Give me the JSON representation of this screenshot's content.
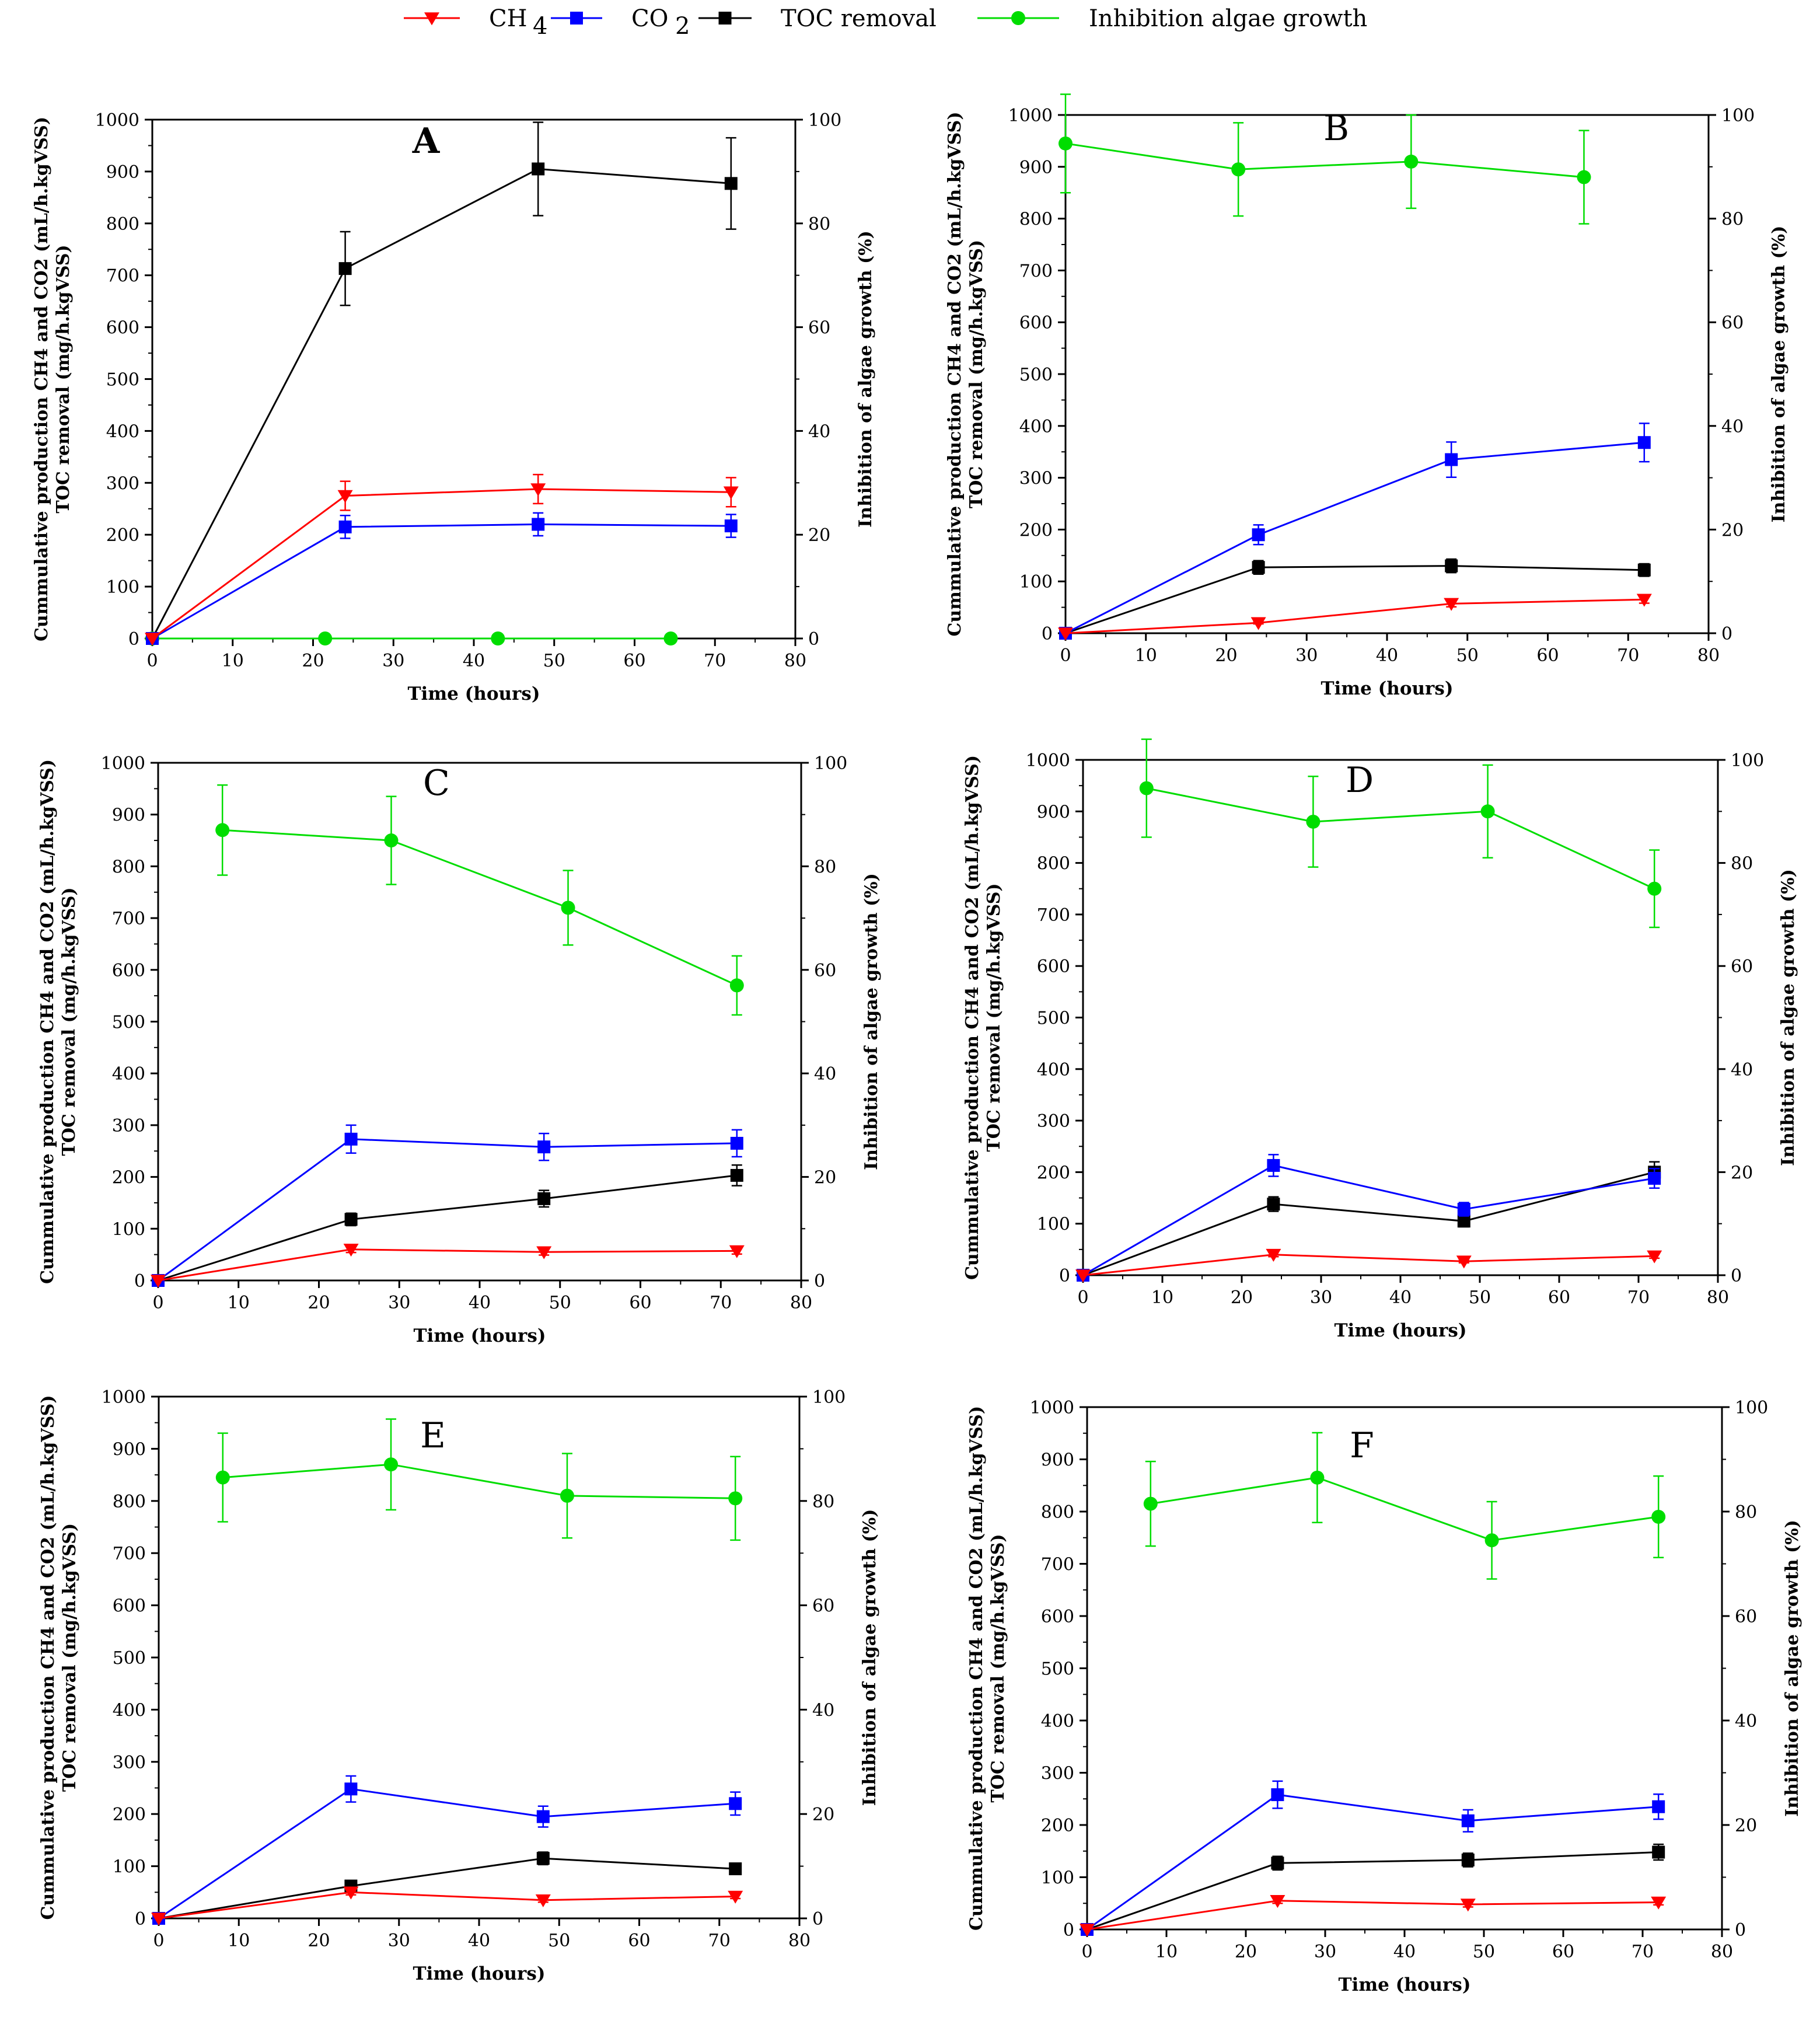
{
  "legend": [
    {
      "label": "CH",
      "sub": "4",
      "color": "#ff0000",
      "marker": "triangle-down"
    },
    {
      "label": "CO",
      "sub": "2",
      "color": "#0000ff",
      "marker": "square"
    },
    {
      "label": "TOC removal",
      "sub": "",
      "color": "#000000",
      "marker": "square"
    },
    {
      "label": "Inhibition algae growth",
      "sub": "",
      "color": "#00ff00",
      "marker": "circle"
    }
  ],
  "axes_text": {
    "xlabel": "Time (hours)",
    "ylabel_line1": "Cummulative production CH4 and CO2 (mL/h.kgVSS)",
    "ylabel_line2": "TOC removal (mg/h.kgVSS)",
    "y2label": "Inhibition of algae growth (%)"
  },
  "chart_data": [
    {
      "type": "line",
      "panel": "A",
      "xlabel": "Time (hours)",
      "ylabel": "Cummulative production CH4 and CO2 (mL/h.kgVSS) TOC removal (mg/h.kgVSS)",
      "y2label": "Inhibition of algae growth (%)",
      "xlim": [
        0,
        80
      ],
      "ylim": [
        0,
        1000
      ],
      "y2lim": [
        0,
        100
      ],
      "xticks": [
        0,
        10,
        20,
        30,
        40,
        50,
        60,
        70,
        80
      ],
      "yticks": [
        0,
        100,
        200,
        300,
        400,
        500,
        600,
        700,
        800,
        900,
        1000
      ],
      "y2ticks": [
        0,
        20,
        40,
        60,
        80,
        100
      ],
      "series": [
        {
          "name": "CH4",
          "axis": "left",
          "x": [
            0,
            24,
            48,
            72
          ],
          "y": [
            0,
            275,
            288,
            282
          ],
          "err": [
            0,
            28,
            28,
            28
          ]
        },
        {
          "name": "CO2",
          "axis": "left",
          "x": [
            0,
            24,
            48,
            72
          ],
          "y": [
            0,
            215,
            220,
            217
          ],
          "err": [
            0,
            22,
            22,
            22
          ]
        },
        {
          "name": "TOC removal",
          "axis": "left",
          "x": [
            0,
            24,
            48,
            72
          ],
          "y": [
            0,
            713,
            905,
            877
          ],
          "err": [
            0,
            71,
            90,
            88
          ]
        },
        {
          "name": "Inhibition algae growth",
          "axis": "right",
          "x": [
            0,
            21.5,
            43,
            64.5
          ],
          "y": [
            0,
            0,
            0,
            0
          ],
          "err": [
            0,
            0,
            0,
            0
          ]
        }
      ]
    },
    {
      "type": "line",
      "panel": "B",
      "xlabel": "Time (hours)",
      "ylabel": "Cummulative production CH4 and CO2 (mL/h.kgVSS) TOC removal (mg/h.kgVSS)",
      "y2label": "Inhibition of algae growth (%)",
      "xlim": [
        0,
        80
      ],
      "ylim": [
        0,
        1000
      ],
      "y2lim": [
        0,
        100
      ],
      "xticks": [
        0,
        10,
        20,
        30,
        40,
        50,
        60,
        70,
        80
      ],
      "yticks": [
        0,
        100,
        200,
        300,
        400,
        500,
        600,
        700,
        800,
        900,
        1000
      ],
      "y2ticks": [
        0,
        20,
        40,
        60,
        80,
        100
      ],
      "series": [
        {
          "name": "CH4",
          "axis": "left",
          "x": [
            0,
            24,
            48,
            72
          ],
          "y": [
            0,
            20,
            57,
            65
          ],
          "err": [
            0,
            2,
            6,
            7
          ]
        },
        {
          "name": "CO2",
          "axis": "left",
          "x": [
            0,
            24,
            48,
            72
          ],
          "y": [
            0,
            190,
            335,
            368
          ],
          "err": [
            0,
            19,
            34,
            37
          ]
        },
        {
          "name": "TOC removal",
          "axis": "left",
          "x": [
            0,
            24,
            48,
            72
          ],
          "y": [
            0,
            127,
            130,
            122
          ],
          "err": [
            0,
            13,
            13,
            12
          ]
        },
        {
          "name": "Inhibition algae growth",
          "axis": "right",
          "x": [
            0,
            21.5,
            43,
            64.5
          ],
          "y": [
            94.5,
            89.5,
            91,
            88
          ],
          "err": [
            9.5,
            9,
            9,
            9
          ]
        }
      ]
    },
    {
      "type": "line",
      "panel": "C",
      "xlabel": "Time (hours)",
      "ylabel": "Cummulative production CH4 and CO2 (mL/h.kgVSS) TOC removal (mg/h.kgVSS)",
      "y2label": "Inhibition of algae growth (%)",
      "xlim": [
        0,
        80
      ],
      "ylim": [
        0,
        1000
      ],
      "y2lim": [
        0,
        100
      ],
      "xticks": [
        0,
        10,
        20,
        30,
        40,
        50,
        60,
        70,
        80
      ],
      "yticks": [
        0,
        100,
        200,
        300,
        400,
        500,
        600,
        700,
        800,
        900,
        1000
      ],
      "y2ticks": [
        0,
        20,
        40,
        60,
        80,
        100
      ],
      "series": [
        {
          "name": "CH4",
          "axis": "left",
          "x": [
            0,
            24,
            48,
            72
          ],
          "y": [
            0,
            60,
            55,
            57
          ],
          "err": [
            0,
            6,
            6,
            6
          ]
        },
        {
          "name": "CO2",
          "axis": "left",
          "x": [
            0,
            24,
            48,
            72
          ],
          "y": [
            0,
            273,
            258,
            265
          ],
          "err": [
            0,
            27,
            26,
            26
          ]
        },
        {
          "name": "TOC removal",
          "axis": "left",
          "x": [
            0,
            24,
            48,
            72
          ],
          "y": [
            0,
            118,
            158,
            203
          ],
          "err": [
            0,
            12,
            16,
            20
          ]
        },
        {
          "name": "Inhibition algae growth",
          "axis": "right",
          "x": [
            8,
            29,
            51,
            72
          ],
          "y": [
            87,
            85,
            72,
            57
          ],
          "err": [
            8.7,
            8.5,
            7.2,
            5.7
          ]
        }
      ]
    },
    {
      "type": "line",
      "panel": "D",
      "xlabel": "Time (hours)",
      "ylabel": "Cummulative production CH4 and CO2 (mL/h.kgVSS) TOC removal (mg/h.kgVSS)",
      "y2label": "Inhibition of algae growth (%)",
      "xlim": [
        0,
        80
      ],
      "ylim": [
        0,
        1000
      ],
      "y2lim": [
        0,
        100
      ],
      "xticks": [
        0,
        10,
        20,
        30,
        40,
        50,
        60,
        70,
        80
      ],
      "yticks": [
        0,
        100,
        200,
        300,
        400,
        500,
        600,
        700,
        800,
        900,
        1000
      ],
      "y2ticks": [
        0,
        20,
        40,
        60,
        80,
        100
      ],
      "series": [
        {
          "name": "CH4",
          "axis": "left",
          "x": [
            0,
            24,
            48,
            72
          ],
          "y": [
            0,
            40,
            27,
            37
          ],
          "err": [
            0,
            4,
            3,
            4
          ]
        },
        {
          "name": "CO2",
          "axis": "left",
          "x": [
            0,
            24,
            48,
            72
          ],
          "y": [
            0,
            213,
            128,
            188
          ],
          "err": [
            0,
            21,
            13,
            19
          ]
        },
        {
          "name": "TOC removal",
          "axis": "left",
          "x": [
            0,
            24,
            48,
            72
          ],
          "y": [
            0,
            138,
            105,
            200
          ],
          "err": [
            0,
            14,
            11,
            20
          ]
        },
        {
          "name": "Inhibition algae growth",
          "axis": "right",
          "x": [
            8,
            29,
            51,
            72
          ],
          "y": [
            94.5,
            88,
            90,
            75
          ],
          "err": [
            9.5,
            8.8,
            9,
            7.5
          ]
        }
      ]
    },
    {
      "type": "line",
      "panel": "E",
      "xlabel": "Time (hours)",
      "ylabel": "Cummulative production CH4 and CO2 (mL/h.kgVSS) TOC removal (mg/h.kgVSS)",
      "y2label": "Inhibition of algae growth (%)",
      "xlim": [
        0,
        80
      ],
      "ylim": [
        0,
        1000
      ],
      "y2lim": [
        0,
        100
      ],
      "xticks": [
        0,
        10,
        20,
        30,
        40,
        50,
        60,
        70,
        80
      ],
      "yticks": [
        0,
        100,
        200,
        300,
        400,
        500,
        600,
        700,
        800,
        900,
        1000
      ],
      "y2ticks": [
        0,
        20,
        40,
        60,
        80,
        100
      ],
      "series": [
        {
          "name": "CH4",
          "axis": "left",
          "x": [
            0,
            24,
            48,
            72
          ],
          "y": [
            0,
            50,
            35,
            42
          ],
          "err": [
            0,
            5,
            4,
            4
          ]
        },
        {
          "name": "CO2",
          "axis": "left",
          "x": [
            0,
            24,
            48,
            72
          ],
          "y": [
            0,
            248,
            195,
            220
          ],
          "err": [
            0,
            25,
            20,
            22
          ]
        },
        {
          "name": "TOC removal",
          "axis": "left",
          "x": [
            0,
            24,
            48,
            72
          ],
          "y": [
            0,
            62,
            115,
            95
          ],
          "err": [
            0,
            6,
            12,
            10
          ]
        },
        {
          "name": "Inhibition algae growth",
          "axis": "right",
          "x": [
            8,
            29,
            51,
            72
          ],
          "y": [
            84.5,
            87,
            81,
            80.5
          ],
          "err": [
            8.5,
            8.7,
            8.1,
            8
          ]
        }
      ]
    },
    {
      "type": "line",
      "panel": "F",
      "xlabel": "Time (hours)",
      "ylabel": "Cummulative production CH4 and CO2 (mL/h.kgVSS) TOC removal (mg/h.kgVSS)",
      "y2label": "Inhibition of algae growth (%)",
      "xlim": [
        0,
        80
      ],
      "ylim": [
        0,
        1000
      ],
      "y2lim": [
        0,
        100
      ],
      "xticks": [
        0,
        10,
        20,
        30,
        40,
        50,
        60,
        70,
        80
      ],
      "yticks": [
        0,
        100,
        200,
        300,
        400,
        500,
        600,
        700,
        800,
        900,
        1000
      ],
      "y2ticks": [
        0,
        20,
        40,
        60,
        80,
        100
      ],
      "series": [
        {
          "name": "CH4",
          "axis": "left",
          "x": [
            0,
            24,
            48,
            72
          ],
          "y": [
            0,
            55,
            48,
            52
          ],
          "err": [
            0,
            5,
            5,
            5
          ]
        },
        {
          "name": "CO2",
          "axis": "left",
          "x": [
            0,
            24,
            48,
            72
          ],
          "y": [
            0,
            258,
            208,
            235
          ],
          "err": [
            0,
            26,
            21,
            24
          ]
        },
        {
          "name": "TOC removal",
          "axis": "left",
          "x": [
            0,
            24,
            48,
            72
          ],
          "y": [
            0,
            127,
            133,
            148
          ],
          "err": [
            0,
            13,
            13,
            15
          ]
        },
        {
          "name": "Inhibition algae growth",
          "axis": "right",
          "x": [
            8,
            29,
            51,
            72
          ],
          "y": [
            81.5,
            86.5,
            74.5,
            79
          ],
          "err": [
            8.1,
            8.6,
            7.4,
            7.8
          ]
        }
      ]
    }
  ]
}
